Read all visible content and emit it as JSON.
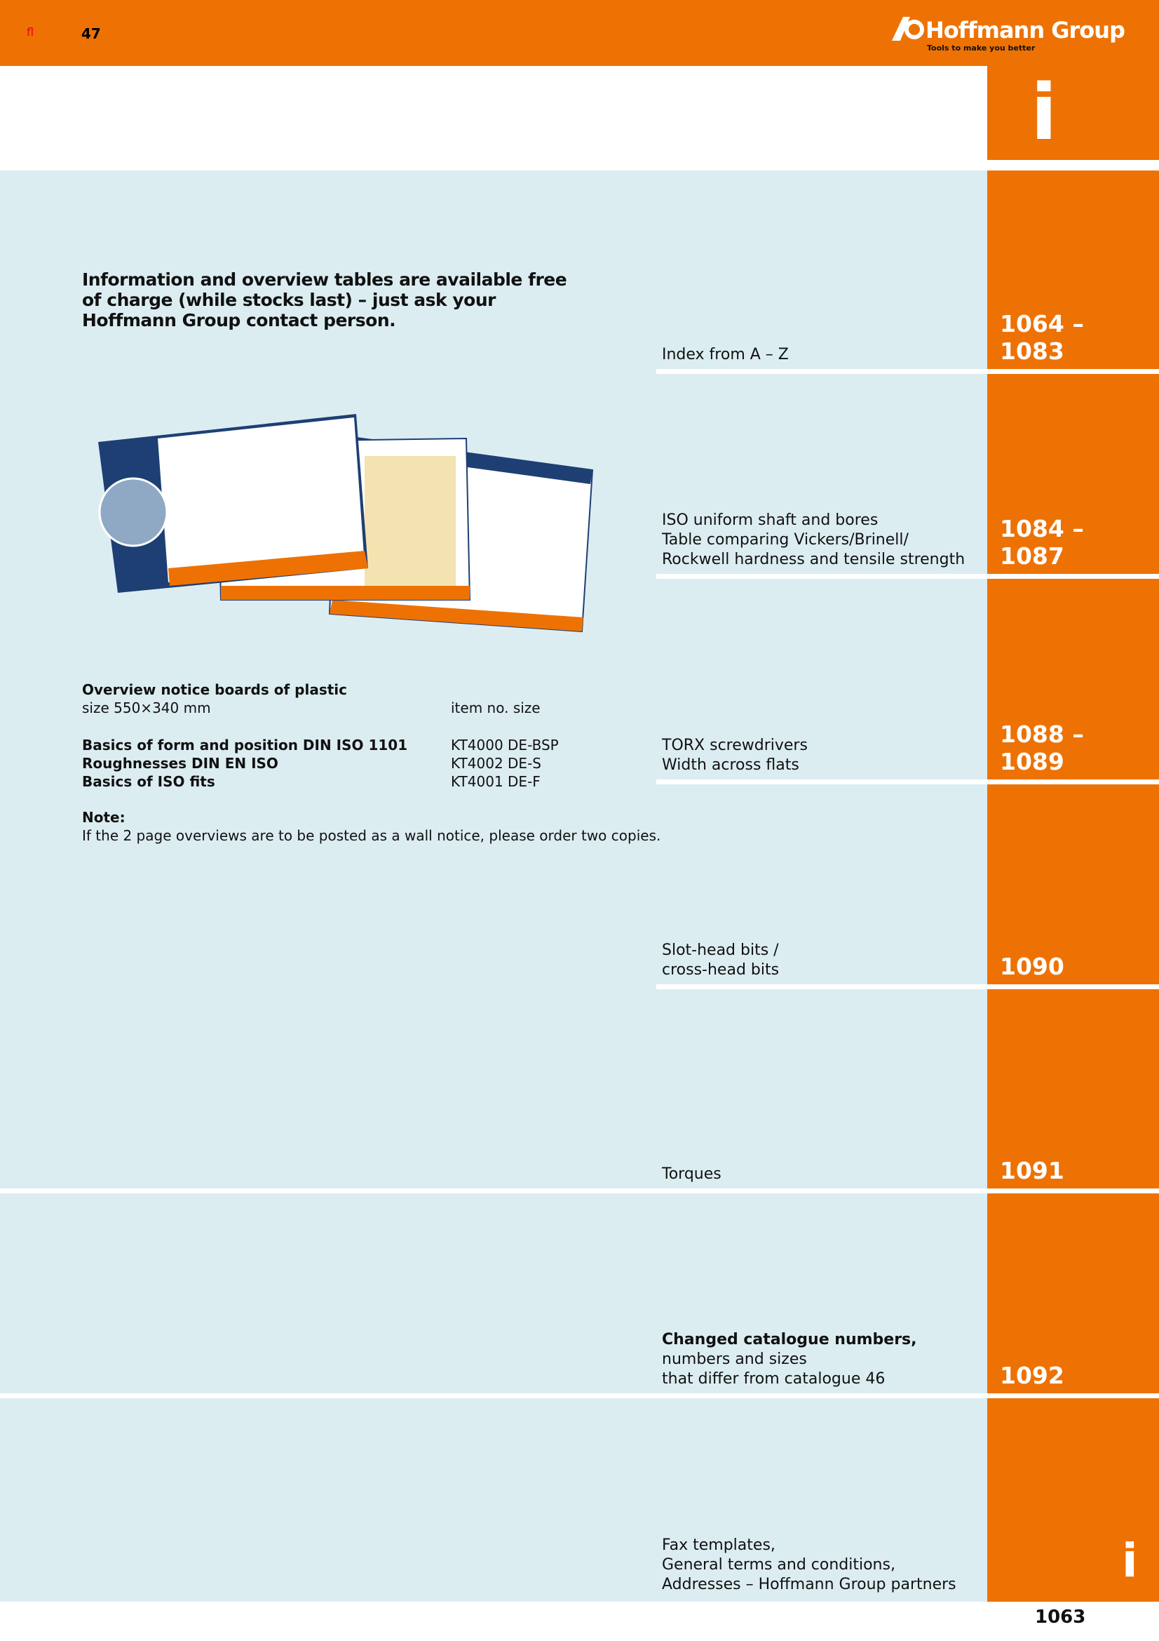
{
  "header": {
    "icon_text": "fl",
    "page_number": "47",
    "logo": "Hoffmann Group",
    "tagline": "Tools to make you better"
  },
  "tab_letter": "i",
  "intro": "Information and overview tables are available free of charge (while stocks last) – just ask your Hoffmann Group contact person.",
  "boards": {
    "title": "Overview notice boards of plastic",
    "subtitle": "size 550×340 mm",
    "column_header": "item no. size",
    "rows": [
      [
        "Basics of form and position DIN ISO 1101",
        "KT4000 DE-BSP"
      ],
      [
        "Roughnesses DIN EN ISO",
        "KT4002 DE-S"
      ],
      [
        "Basics of ISO fits",
        "KT4001 DE-F"
      ]
    ]
  },
  "note": {
    "label": "Note:",
    "text": "If the 2 page overviews are to be posted as a wall notice, please order two copies."
  },
  "index": [
    {
      "lines": [
        "Index from A – Z"
      ],
      "pages": [
        "1064 –",
        "1083"
      ]
    },
    {
      "lines": [
        "ISO uniform shaft and bores",
        "Table comparing Vickers/Brinell/",
        "Rockwell hardness and tensile strength"
      ],
      "pages": [
        "1084 –",
        "1087"
      ]
    },
    {
      "lines": [
        "TORX screwdrivers",
        "Width across flats"
      ],
      "pages": [
        "1088 –",
        "1089"
      ]
    },
    {
      "lines": [
        "Slot-head bits /",
        "cross-head bits"
      ],
      "pages": [
        "1090"
      ]
    },
    {
      "lines": [
        "Torques"
      ],
      "pages": [
        "1091"
      ]
    },
    {
      "lines": [
        "Changed catalogue numbers,",
        "numbers and sizes",
        "that differ from catalogue 46"
      ],
      "pages": [
        "1092"
      ]
    },
    {
      "lines": [
        "Fax templates,",
        "General terms and conditions,",
        "Addresses – Hoffmann Group partners"
      ],
      "pages": []
    }
  ],
  "footer": {
    "page_number": "1063"
  }
}
